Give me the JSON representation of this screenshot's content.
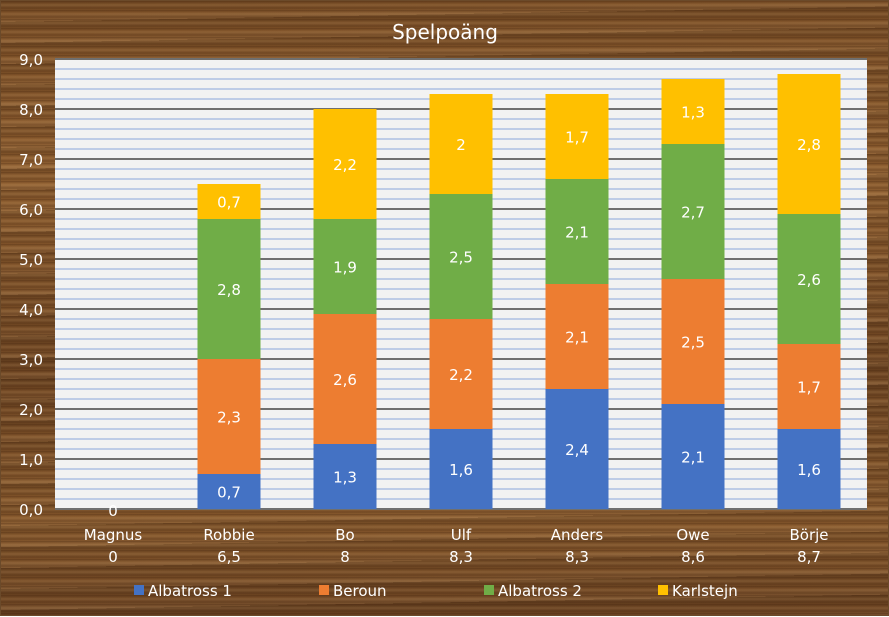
{
  "chart_data": {
    "type": "bar",
    "stacked": true,
    "title": "Spelpoäng",
    "categories": [
      "Magnus",
      "Robbie",
      "Bo",
      "Ulf",
      "Anders",
      "Owe",
      "Börje"
    ],
    "totals": [
      "0",
      "6,5",
      "8",
      "8,3",
      "8,3",
      "8,6",
      "8,7"
    ],
    "series": [
      {
        "name": "Albatross 1",
        "color": "#4472c4",
        "values": [
          0,
          0.7,
          1.3,
          1.6,
          2.4,
          2.1,
          1.6
        ]
      },
      {
        "name": "Beroun",
        "color": "#ed7d31",
        "values": [
          0,
          2.3,
          2.6,
          2.2,
          2.1,
          2.5,
          1.7
        ]
      },
      {
        "name": "Albatross 2",
        "color": "#70ad47",
        "values": [
          0,
          2.8,
          1.9,
          2.5,
          2.1,
          2.7,
          2.6
        ]
      },
      {
        "name": "Karlstejn",
        "color": "#ffc000",
        "values": [
          0,
          0.7,
          2.2,
          2,
          1.7,
          1.3,
          2.8
        ]
      }
    ],
    "ylim": [
      0,
      9
    ],
    "yticks": [
      "0,0",
      "1,0",
      "2,0",
      "3,0",
      "4,0",
      "5,0",
      "6,0",
      "7,0",
      "8,0",
      "9,0"
    ],
    "minor_step": 0.2,
    "grid": true,
    "legend": "bottom",
    "xlabel": "",
    "ylabel": ""
  }
}
